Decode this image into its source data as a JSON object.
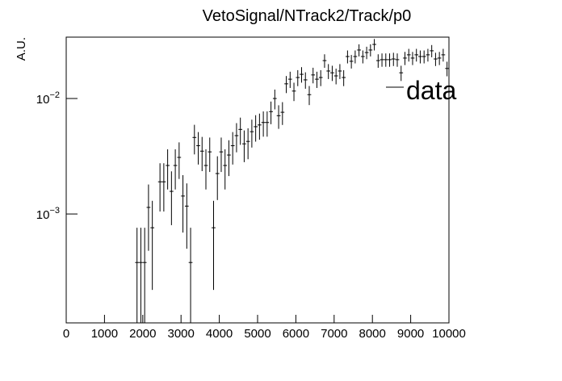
{
  "chart_data": {
    "type": "histogram",
    "title": "VetoSignal/NTrack2/Track/p0",
    "y_label": "A.U.",
    "bins": [
      0,
      100,
      200,
      300,
      400,
      500,
      600,
      700,
      800,
      900,
      1000,
      1100,
      1200,
      1300,
      1400,
      1500,
      1600,
      1700,
      1800,
      1900,
      2000,
      2100,
      2200,
      2300,
      2400,
      2500,
      2600,
      2700,
      2800,
      2900,
      3000,
      3100,
      3200,
      3300,
      3400,
      3500,
      3600,
      3700,
      3800,
      3900,
      4000,
      4100,
      4200,
      4300,
      4400,
      4500,
      4600,
      4700,
      4800,
      4900,
      5000,
      5100,
      5200,
      5300,
      5400,
      5500,
      5600,
      5700,
      5800,
      5900,
      6000,
      6100,
      6200,
      6300,
      6400,
      6500,
      6600,
      6700,
      6800,
      6900,
      7000,
      7100,
      7200,
      7300,
      7400,
      7500,
      7600,
      7700,
      7800,
      7900,
      8000,
      8100,
      8200,
      8300,
      8400,
      8500,
      8600,
      8700,
      8800,
      8900,
      9000,
      9100,
      9200,
      9300,
      9400,
      9500,
      9600,
      9700,
      9800,
      9900,
      10000
    ],
    "series": [
      {
        "name": "data",
        "color": "#000000",
        "values": [
          null,
          null,
          null,
          null,
          null,
          null,
          null,
          null,
          null,
          null,
          null,
          null,
          null,
          null,
          null,
          null,
          null,
          null,
          0.00038,
          0.00038,
          0.00038,
          0.00114,
          0.00076,
          null,
          0.0019,
          0.0019,
          0.00263,
          0.00157,
          0.00263,
          0.00309,
          0.00143,
          0.00117,
          0.00038,
          0.0046,
          0.0039,
          0.0035,
          0.00263,
          0.00345,
          0.00076,
          0.00224,
          0.00345,
          0.00263,
          0.00324,
          0.0039,
          0.00477,
          0.0054,
          0.00405,
          0.00425,
          0.00516,
          0.0057,
          0.0059,
          0.0062,
          0.0062,
          0.0077,
          0.01,
          0.0071,
          0.0076,
          0.0134,
          0.0147,
          0.0116,
          0.0152,
          0.0162,
          0.0145,
          0.0108,
          0.016,
          0.0147,
          0.0152,
          0.0213,
          0.0173,
          0.0167,
          0.0157,
          0.0173,
          0.0152,
          0.0231,
          0.021,
          0.0231,
          0.0263,
          0.0231,
          0.025,
          0.0263,
          0.0294,
          0.0213,
          0.0217,
          0.0217,
          0.0217,
          0.022,
          0.0217,
          0.0167,
          0.0224,
          0.0239,
          0.0224,
          0.0239,
          0.0231,
          0.0231,
          0.0239,
          0.0259,
          0.022,
          0.0224,
          0.0239,
          0.0182
        ],
        "errors": [
          null,
          null,
          null,
          null,
          null,
          null,
          null,
          null,
          null,
          null,
          null,
          null,
          null,
          null,
          null,
          null,
          null,
          null,
          0.00038,
          0.00038,
          0.00038,
          0.00066,
          0.00054,
          null,
          0.00085,
          0.00085,
          0.001,
          0.00077,
          0.001,
          0.00108,
          0.00074,
          0.00067,
          0.00038,
          0.00132,
          0.00122,
          0.00115,
          0.001,
          0.00114,
          0.00054,
          0.00092,
          0.00114,
          0.001,
          0.00111,
          0.00122,
          0.00135,
          0.00143,
          0.00124,
          0.00127,
          0.0014,
          0.00147,
          0.0015,
          0.00153,
          0.00153,
          0.00171,
          0.00195,
          0.00164,
          0.0017,
          0.00226,
          0.00236,
          0.0021,
          0.0024,
          0.00248,
          0.00235,
          0.00203,
          0.00247,
          0.00236,
          0.0024,
          0.00285,
          0.00256,
          0.00252,
          0.00244,
          0.00256,
          0.0024,
          0.00296,
          0.00282,
          0.00296,
          0.00316,
          0.00296,
          0.00308,
          0.00316,
          0.00334,
          0.00285,
          0.00287,
          0.00287,
          0.00287,
          0.00289,
          0.00287,
          0.00252,
          0.00292,
          0.00301,
          0.00292,
          0.00301,
          0.00296,
          0.00296,
          0.00301,
          0.00314,
          0.00289,
          0.00292,
          0.00301,
          0.00263
        ]
      }
    ],
    "xlim": [
      0,
      10000
    ],
    "xticks": [
      0,
      1000,
      2000,
      3000,
      4000,
      5000,
      6000,
      7000,
      8000,
      9000,
      10000
    ],
    "ylim": [
      0.000114,
      0.034
    ],
    "log_y": true,
    "yticks": [
      {
        "value": 0.001,
        "label": "10",
        "exponent": "−3"
      },
      {
        "value": 0.01,
        "label": "10",
        "exponent": "−2"
      }
    ],
    "legend": "top right"
  }
}
